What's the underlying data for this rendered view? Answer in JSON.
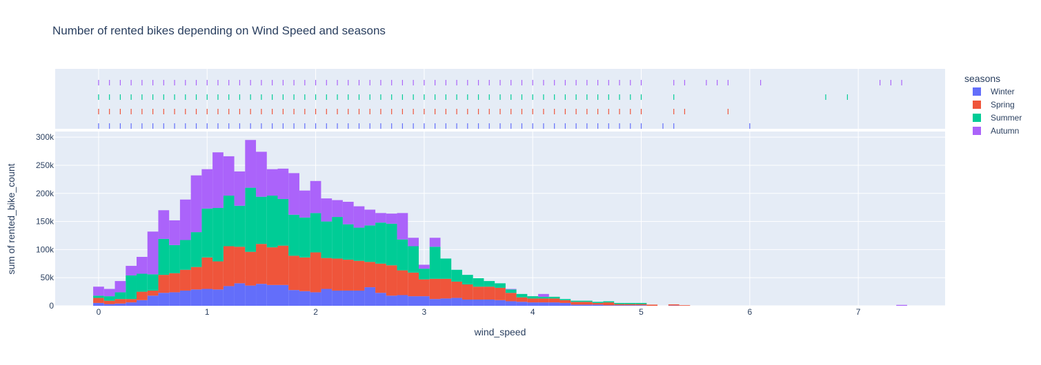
{
  "chart_data": {
    "type": "bar",
    "barmode": "stack",
    "title": "Number of rented bikes depending on Wind Speed and seasons",
    "xlabel": "wind_speed",
    "ylabel": "sum of rented_bike_count",
    "xlim": [
      -0.4,
      7.8
    ],
    "ylim": [
      0,
      310000
    ],
    "xticks": [
      0,
      1,
      2,
      3,
      4,
      5,
      6,
      7
    ],
    "yticks": [
      0,
      50000,
      100000,
      150000,
      200000,
      250000,
      300000
    ],
    "ytick_labels": [
      "0",
      "50k",
      "100k",
      "150k",
      "200k",
      "250k",
      "300k"
    ],
    "bin_width": 0.1,
    "legend": {
      "title": "seasons",
      "position": "right"
    },
    "x": [
      0.0,
      0.1,
      0.2,
      0.3,
      0.4,
      0.5,
      0.6,
      0.7,
      0.8,
      0.9,
      1.0,
      1.1,
      1.2,
      1.3,
      1.4,
      1.5,
      1.6,
      1.7,
      1.8,
      1.9,
      2.0,
      2.1,
      2.2,
      2.3,
      2.4,
      2.5,
      2.6,
      2.7,
      2.8,
      2.9,
      3.0,
      3.1,
      3.2,
      3.3,
      3.4,
      3.5,
      3.6,
      3.7,
      3.8,
      3.9,
      4.0,
      4.1,
      4.2,
      4.3,
      4.4,
      4.5,
      4.6,
      4.7,
      4.8,
      4.9,
      5.0,
      5.1,
      5.2,
      5.3,
      5.4,
      5.5,
      5.6,
      5.7,
      5.8,
      5.9,
      6.0,
      6.1,
      6.2,
      6.3,
      6.4,
      6.5,
      6.6,
      6.7,
      6.8,
      6.9,
      7.0,
      7.1,
      7.2,
      7.3,
      7.4
    ],
    "series": [
      {
        "name": "Winter",
        "color": "#636efa",
        "values": [
          5000,
          3000,
          4000,
          6000,
          10000,
          18000,
          23000,
          24000,
          27000,
          29000,
          30000,
          29000,
          35000,
          40000,
          36000,
          39000,
          37000,
          37000,
          28000,
          26000,
          24000,
          30000,
          27000,
          27000,
          27000,
          33000,
          23000,
          18000,
          19000,
          17000,
          17000,
          12000,
          13000,
          14000,
          11000,
          11000,
          11000,
          10000,
          8000,
          7000,
          6000,
          6000,
          6000,
          5000,
          2000,
          2000,
          2000,
          1000,
          1000,
          1000,
          1000,
          0,
          0,
          500,
          0,
          0,
          0,
          0,
          0,
          0,
          0,
          0,
          0,
          0,
          0,
          0,
          0,
          0,
          0,
          0,
          0,
          0,
          0,
          0,
          0
        ]
      },
      {
        "name": "Spring",
        "color": "#ef553b",
        "values": [
          9000,
          6000,
          8000,
          6000,
          15000,
          9000,
          32000,
          34000,
          37000,
          40000,
          56000,
          50000,
          71000,
          65000,
          60000,
          71000,
          67000,
          70000,
          61000,
          60000,
          71000,
          55000,
          57000,
          55000,
          53000,
          45000,
          52000,
          54000,
          44000,
          42000,
          30000,
          36000,
          35000,
          29000,
          27000,
          23000,
          23000,
          22000,
          15000,
          8000,
          7000,
          7000,
          7000,
          5000,
          5000,
          5000,
          3000,
          5000,
          2000,
          2000,
          2000,
          2000,
          0,
          2000,
          1000,
          0,
          0,
          0,
          0,
          0,
          0,
          0,
          0,
          0,
          0,
          0,
          0,
          0,
          0,
          0,
          0,
          0,
          0,
          0,
          0
        ]
      },
      {
        "name": "Summer",
        "color": "#00cc96",
        "values": [
          4000,
          8000,
          12000,
          42000,
          32000,
          29000,
          64000,
          50000,
          53000,
          62000,
          87000,
          95000,
          90000,
          73000,
          114000,
          84000,
          92000,
          83000,
          73000,
          71000,
          70000,
          65000,
          74000,
          63000,
          59000,
          65000,
          73000,
          74000,
          55000,
          47000,
          19000,
          57000,
          36000,
          21000,
          17000,
          15000,
          10000,
          8000,
          6000,
          6000,
          4000,
          3000,
          3000,
          2000,
          2000,
          2000,
          2000,
          2000,
          2000,
          2000,
          2000,
          0,
          0,
          0,
          0,
          0,
          0,
          0,
          0,
          0,
          0,
          0,
          0,
          0,
          0,
          0,
          0,
          0,
          0,
          0,
          0,
          0,
          0,
          0,
          0
        ]
      },
      {
        "name": "Autumn",
        "color": "#ab63fa",
        "values": [
          16000,
          13000,
          20000,
          17000,
          30000,
          76000,
          51000,
          44000,
          72000,
          101000,
          70000,
          99000,
          70000,
          61000,
          85000,
          80000,
          47000,
          54000,
          74000,
          48000,
          57000,
          41000,
          30000,
          40000,
          38000,
          28000,
          17000,
          18000,
          47000,
          15000,
          7000,
          16000,
          0,
          0,
          0,
          0,
          0,
          0,
          1000,
          0,
          0,
          5000,
          0,
          0,
          0,
          0,
          0,
          0,
          0,
          0,
          0,
          0,
          0,
          0,
          0,
          0,
          0,
          0,
          0,
          0,
          0,
          0,
          0,
          0,
          0,
          0,
          0,
          0,
          0,
          0,
          0,
          0,
          0,
          0,
          1500
        ]
      }
    ],
    "rug": {
      "Winter": [
        0,
        0.1,
        0.2,
        0.3,
        0.4,
        0.5,
        0.6,
        0.7,
        0.8,
        0.9,
        1.0,
        1.1,
        1.2,
        1.3,
        1.4,
        1.5,
        1.6,
        1.7,
        1.8,
        1.9,
        2.0,
        2.1,
        2.2,
        2.3,
        2.4,
        2.5,
        2.6,
        2.7,
        2.8,
        2.9,
        3.0,
        3.1,
        3.2,
        3.3,
        3.4,
        3.5,
        3.6,
        3.7,
        3.8,
        3.9,
        4.0,
        4.1,
        4.2,
        4.3,
        4.4,
        4.5,
        4.6,
        4.7,
        4.8,
        4.9,
        5.0,
        5.2,
        5.3,
        6.0
      ],
      "Spring": [
        0,
        0.1,
        0.2,
        0.3,
        0.4,
        0.5,
        0.6,
        0.7,
        0.8,
        0.9,
        1.0,
        1.1,
        1.2,
        1.3,
        1.4,
        1.5,
        1.6,
        1.7,
        1.8,
        1.9,
        2.0,
        2.1,
        2.2,
        2.3,
        2.4,
        2.5,
        2.6,
        2.7,
        2.8,
        2.9,
        3.0,
        3.1,
        3.2,
        3.3,
        3.4,
        3.5,
        3.6,
        3.7,
        3.8,
        3.9,
        4.0,
        4.1,
        4.2,
        4.3,
        4.4,
        4.5,
        4.6,
        4.7,
        4.8,
        4.9,
        5.0,
        5.3,
        5.4,
        5.8
      ],
      "Summer": [
        0,
        0.1,
        0.2,
        0.3,
        0.4,
        0.5,
        0.6,
        0.7,
        0.8,
        0.9,
        1.0,
        1.1,
        1.2,
        1.3,
        1.4,
        1.5,
        1.6,
        1.7,
        1.8,
        1.9,
        2.0,
        2.1,
        2.2,
        2.3,
        2.4,
        2.5,
        2.6,
        2.7,
        2.8,
        2.9,
        3.0,
        3.1,
        3.2,
        3.3,
        3.4,
        3.5,
        3.6,
        3.7,
        3.8,
        3.9,
        4.0,
        4.1,
        4.2,
        4.3,
        4.4,
        4.5,
        4.6,
        4.7,
        4.8,
        4.9,
        5.0,
        5.3,
        6.7,
        6.9
      ],
      "Autumn": [
        0,
        0.1,
        0.2,
        0.3,
        0.4,
        0.5,
        0.6,
        0.7,
        0.8,
        0.9,
        1.0,
        1.1,
        1.2,
        1.3,
        1.4,
        1.5,
        1.6,
        1.7,
        1.8,
        1.9,
        2.0,
        2.1,
        2.2,
        2.3,
        2.4,
        2.5,
        2.6,
        2.7,
        2.8,
        2.9,
        3.0,
        3.1,
        3.2,
        3.3,
        3.4,
        3.5,
        3.6,
        3.7,
        3.8,
        3.9,
        4.0,
        4.1,
        4.2,
        4.3,
        4.4,
        4.5,
        4.6,
        4.7,
        4.8,
        4.9,
        5.0,
        5.3,
        5.4,
        5.6,
        5.7,
        5.8,
        6.1,
        7.2,
        7.3,
        7.4
      ]
    }
  }
}
